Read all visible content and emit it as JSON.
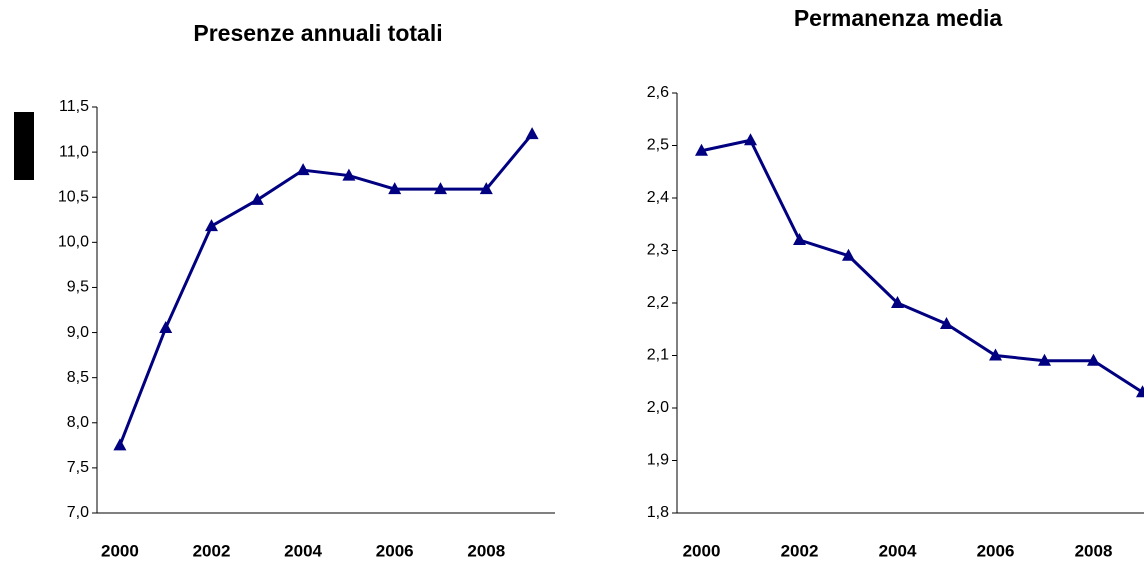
{
  "chart_data": [
    {
      "type": "line",
      "title": "Presenze annuali totali",
      "categories": [
        "2000",
        null,
        "2002",
        null,
        "2004",
        null,
        "2006",
        null,
        "2008",
        null
      ],
      "series": [
        {
          "color": "#000080",
          "values": [
            7.75,
            9.05,
            10.18,
            10.47,
            10.8,
            10.74,
            10.59,
            10.59,
            10.59,
            11.2
          ]
        }
      ],
      "ylim": [
        7.0,
        11.5
      ],
      "yticks": [
        {
          "value": 7.0,
          "label": "7,0"
        },
        {
          "value": 7.5,
          "label": "7,5"
        },
        {
          "value": 8.0,
          "label": "8,0"
        },
        {
          "value": 8.5,
          "label": "8,5"
        },
        {
          "value": 9.0,
          "label": "9,0"
        },
        {
          "value": 9.5,
          "label": "9,5"
        },
        {
          "value": 10.0,
          "label": "10,0"
        },
        {
          "value": 10.5,
          "label": "10,5"
        },
        {
          "value": 11.0,
          "label": "11,0"
        },
        {
          "value": 11.5,
          "label": "11,5"
        }
      ]
    },
    {
      "type": "line",
      "title": "Permanenza media",
      "categories": [
        "2000",
        null,
        "2002",
        null,
        "2004",
        null,
        "2006",
        null,
        "2008",
        null
      ],
      "series": [
        {
          "color": "#000080",
          "values": [
            2.49,
            2.51,
            2.32,
            2.29,
            2.2,
            2.16,
            2.1,
            2.09,
            2.09,
            2.03
          ]
        }
      ],
      "ylim": [
        1.8,
        2.6
      ],
      "yticks": [
        {
          "value": 1.8,
          "label": "1,8"
        },
        {
          "value": 1.9,
          "label": "1,9"
        },
        {
          "value": 2.0,
          "label": "2,0"
        },
        {
          "value": 2.1,
          "label": "2,1"
        },
        {
          "value": 2.2,
          "label": "2,2"
        },
        {
          "value": 2.3,
          "label": "2,3"
        },
        {
          "value": 2.4,
          "label": "2,4"
        },
        {
          "value": 2.5,
          "label": "2,5"
        },
        {
          "value": 2.6,
          "label": "2,6"
        }
      ]
    }
  ]
}
